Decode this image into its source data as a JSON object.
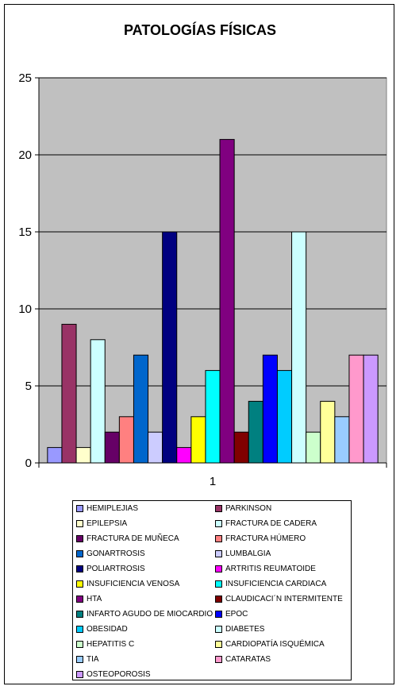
{
  "chart_data": {
    "type": "bar",
    "title": "PATOLOGÍAS FÍSICAS",
    "categories": [
      "1"
    ],
    "ylim": [
      0,
      25
    ],
    "yticks": [
      0,
      5,
      10,
      15,
      20,
      25
    ],
    "grid": true,
    "legend_position": "bottom",
    "plot_background": "#c0c0c0",
    "series": [
      {
        "name": "HEMIPLEJIAS",
        "values": [
          1
        ],
        "color": "#9999ff"
      },
      {
        "name": "PARKINSON",
        "values": [
          9
        ],
        "color": "#993366"
      },
      {
        "name": "EPILEPSIA",
        "values": [
          1
        ],
        "color": "#ffffcc"
      },
      {
        "name": "FRACTURA DE CADERA",
        "values": [
          8
        ],
        "color": "#ccffff"
      },
      {
        "name": "FRACTURA DE MUÑECA",
        "values": [
          2
        ],
        "color": "#660066"
      },
      {
        "name": "FRACTURA HÚMERO",
        "values": [
          3
        ],
        "color": "#ff8080"
      },
      {
        "name": "GONARTROSIS",
        "values": [
          7
        ],
        "color": "#0066cc"
      },
      {
        "name": "LUMBALGIA",
        "values": [
          2
        ],
        "color": "#ccccff"
      },
      {
        "name": "POLIARTROSIS",
        "values": [
          15
        ],
        "color": "#000080"
      },
      {
        "name": "ARTRITIS REUMATOIDE",
        "values": [
          1
        ],
        "color": "#ff00ff"
      },
      {
        "name": "INSUFICIENCIA VENOSA",
        "values": [
          3
        ],
        "color": "#ffff00"
      },
      {
        "name": "INSUFICIENCIA CARDIACA",
        "values": [
          6
        ],
        "color": "#00ffff"
      },
      {
        "name": "HTA",
        "values": [
          21
        ],
        "color": "#800080"
      },
      {
        "name": "CLAUDICACI´N INTERMITENTE",
        "values": [
          2
        ],
        "color": "#800000"
      },
      {
        "name": "INFARTO AGUDO DE MIOCARDIO",
        "values": [
          4
        ],
        "color": "#008080"
      },
      {
        "name": "EPOC",
        "values": [
          7
        ],
        "color": "#0000ff"
      },
      {
        "name": "OBESIDAD",
        "values": [
          6
        ],
        "color": "#00ccff"
      },
      {
        "name": "DIABETES",
        "values": [
          15
        ],
        "color": "#ccffff"
      },
      {
        "name": "HEPATITIS C",
        "values": [
          2
        ],
        "color": "#ccffcc"
      },
      {
        "name": "CARDIOPATÍA ISQUÉMICA",
        "values": [
          4
        ],
        "color": "#ffff99"
      },
      {
        "name": "TIA",
        "values": [
          3
        ],
        "color": "#99ccff"
      },
      {
        "name": "CATARATAS",
        "values": [
          7
        ],
        "color": "#ff99cc"
      },
      {
        "name": "OSTEOPOROSIS",
        "values": [
          7
        ],
        "color": "#cc99ff"
      }
    ]
  }
}
